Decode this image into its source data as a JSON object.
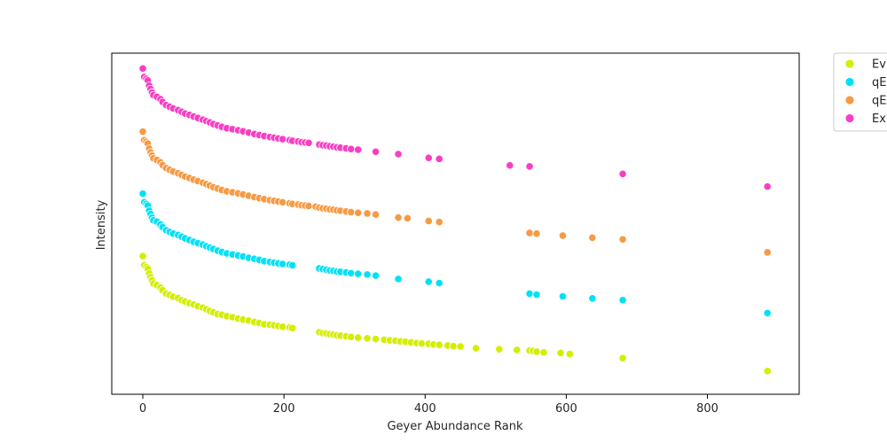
{
  "chart_data": {
    "type": "scatter",
    "xlabel": "Geyer Abundance Rank",
    "ylabel": "Intensity",
    "xlim": [
      -44,
      930
    ],
    "ylim": [
      0,
      100
    ],
    "xticks": [
      0,
      200,
      400,
      600,
      800
    ],
    "yticks_visible": false,
    "grid": false,
    "legend": "outside-top-right",
    "series": [
      {
        "name": "Ev",
        "color": "#d4ee00",
        "x": [
          0,
          2,
          5,
          7,
          9,
          11,
          13,
          15,
          20,
          25,
          28,
          33,
          38,
          43,
          50,
          55,
          60,
          66,
          72,
          78,
          85,
          90,
          95,
          100,
          106,
          112,
          119,
          127,
          135,
          142,
          150,
          158,
          165,
          172,
          180,
          186,
          192,
          198,
          208,
          212,
          250,
          255,
          260,
          265,
          270,
          275,
          280,
          288,
          295,
          305,
          318,
          330,
          342,
          350,
          358,
          365,
          372,
          380,
          388,
          395,
          405,
          412,
          420,
          432,
          440,
          450,
          472,
          505,
          530,
          548,
          553,
          558,
          568,
          592,
          605,
          680,
          885
        ],
        "y": [
          40.5,
          37.8,
          37.3,
          36.8,
          35.4,
          34.3,
          33.4,
          32.5,
          32.0,
          31.3,
          30.5,
          29.5,
          29.1,
          28.6,
          28.2,
          27.6,
          27.2,
          26.7,
          26.3,
          25.8,
          25.4,
          24.9,
          24.4,
          24.0,
          23.5,
          23.3,
          22.9,
          22.6,
          22.2,
          21.9,
          21.6,
          21.2,
          20.9,
          20.5,
          20.4,
          20.2,
          20.0,
          19.8,
          19.6,
          19.4,
          18.2,
          17.9,
          17.8,
          17.6,
          17.5,
          17.3,
          17.2,
          17.0,
          16.8,
          16.6,
          16.4,
          16.2,
          16.0,
          15.8,
          15.7,
          15.5,
          15.4,
          15.2,
          15.0,
          14.9,
          14.8,
          14.6,
          14.5,
          14.3,
          14.1,
          14.0,
          13.5,
          13.2,
          13.0,
          12.8,
          12.7,
          12.5,
          12.3,
          12.1,
          11.8,
          10.6,
          6.8
        ]
      },
      {
        "name": "qE",
        "color": "#00e1f8",
        "x": [
          0,
          2,
          5,
          7,
          9,
          11,
          13,
          15,
          20,
          25,
          28,
          33,
          38,
          43,
          50,
          55,
          60,
          66,
          72,
          78,
          85,
          90,
          95,
          100,
          106,
          112,
          119,
          127,
          135,
          142,
          150,
          158,
          165,
          172,
          180,
          186,
          192,
          198,
          208,
          212,
          250,
          255,
          260,
          265,
          270,
          275,
          280,
          288,
          295,
          305,
          318,
          330,
          362,
          405,
          420,
          548,
          558,
          595,
          637,
          680,
          885
        ],
        "y": [
          58.8,
          56.3,
          55.8,
          55.3,
          53.8,
          52.8,
          51.8,
          51.0,
          50.6,
          49.8,
          49.0,
          48.1,
          47.6,
          47.1,
          46.7,
          46.2,
          45.7,
          45.2,
          44.7,
          44.3,
          43.9,
          43.4,
          43.0,
          42.6,
          42.1,
          41.7,
          41.3,
          41.0,
          40.7,
          40.4,
          40.0,
          39.7,
          39.4,
          39.0,
          38.8,
          38.6,
          38.4,
          38.2,
          38.0,
          37.8,
          36.9,
          36.7,
          36.5,
          36.3,
          36.2,
          36.0,
          35.9,
          35.7,
          35.5,
          35.3,
          35.1,
          34.8,
          33.8,
          33.0,
          32.6,
          29.5,
          29.2,
          28.7,
          28.1,
          27.6,
          23.8
        ]
      },
      {
        "name": "qE",
        "color": "#f79a44",
        "x": [
          0,
          2,
          5,
          7,
          9,
          11,
          13,
          15,
          20,
          25,
          28,
          33,
          38,
          43,
          50,
          55,
          60,
          66,
          72,
          78,
          85,
          90,
          95,
          100,
          106,
          112,
          119,
          127,
          135,
          142,
          150,
          158,
          165,
          172,
          180,
          186,
          192,
          198,
          208,
          212,
          220,
          225,
          230,
          235,
          245,
          250,
          255,
          260,
          265,
          270,
          275,
          280,
          288,
          295,
          305,
          318,
          330,
          362,
          375,
          405,
          420,
          548,
          558,
          595,
          637,
          680,
          885
        ],
        "y": [
          77.0,
          74.5,
          74.0,
          73.5,
          72.0,
          70.9,
          70.0,
          69.2,
          68.7,
          68.0,
          67.2,
          66.3,
          65.8,
          65.3,
          64.8,
          64.3,
          63.8,
          63.4,
          62.9,
          62.5,
          62.0,
          61.6,
          61.2,
          60.7,
          60.3,
          59.9,
          59.5,
          59.2,
          58.9,
          58.6,
          58.2,
          57.8,
          57.5,
          57.2,
          56.9,
          56.7,
          56.5,
          56.3,
          56.0,
          55.8,
          55.6,
          55.4,
          55.3,
          55.2,
          55.0,
          54.7,
          54.5,
          54.4,
          54.2,
          54.1,
          53.9,
          53.8,
          53.6,
          53.4,
          53.2,
          53.0,
          52.7,
          51.8,
          51.6,
          50.8,
          50.5,
          47.3,
          47.1,
          46.5,
          45.9,
          45.4,
          41.6
        ]
      },
      {
        "name": "Ex",
        "color": "#f83fc4",
        "x": [
          0,
          2,
          5,
          7,
          9,
          11,
          13,
          15,
          20,
          25,
          28,
          33,
          38,
          43,
          50,
          55,
          60,
          66,
          72,
          78,
          85,
          90,
          95,
          100,
          106,
          112,
          119,
          127,
          135,
          142,
          150,
          158,
          165,
          172,
          180,
          186,
          192,
          198,
          208,
          212,
          220,
          225,
          230,
          235,
          250,
          255,
          260,
          265,
          270,
          275,
          280,
          288,
          295,
          305,
          330,
          362,
          405,
          420,
          520,
          548,
          680,
          885
        ],
        "y": [
          95.5,
          93.0,
          92.5,
          92.0,
          90.5,
          89.5,
          88.5,
          87.7,
          87.2,
          86.5,
          85.7,
          84.8,
          84.3,
          83.8,
          83.3,
          82.8,
          82.3,
          81.9,
          81.4,
          81.0,
          80.5,
          80.1,
          79.7,
          79.2,
          78.8,
          78.4,
          78.0,
          77.7,
          77.4,
          77.1,
          76.7,
          76.3,
          76.0,
          75.7,
          75.4,
          75.2,
          75.0,
          74.8,
          74.5,
          74.3,
          74.1,
          73.9,
          73.8,
          73.7,
          73.2,
          73.0,
          72.9,
          72.7,
          72.6,
          72.4,
          72.3,
          72.1,
          71.9,
          71.7,
          71.1,
          70.4,
          69.3,
          69.0,
          67.1,
          66.8,
          64.6,
          60.9
        ]
      }
    ]
  }
}
